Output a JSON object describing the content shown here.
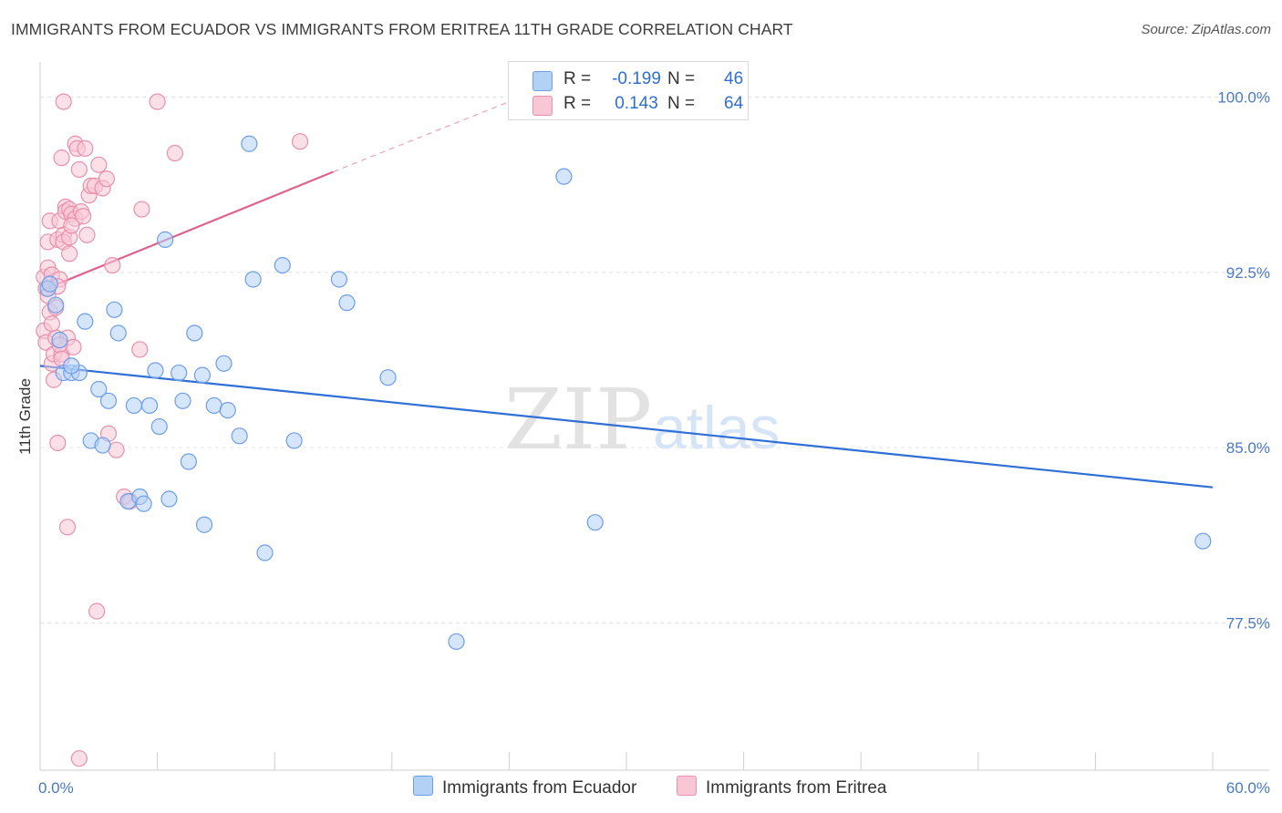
{
  "title": "IMMIGRANTS FROM ECUADOR VS IMMIGRANTS FROM ERITREA 11TH GRADE CORRELATION CHART",
  "source": "Source: ZipAtlas.com",
  "watermark": {
    "zip": "ZIP",
    "atlas": "atlas"
  },
  "legend": {
    "rows": [
      {
        "r_label": "R =",
        "r_value": "-0.199",
        "n_label": "N =",
        "n_value": "46",
        "color": "#b3d0f5",
        "border": "#6d9ee8"
      },
      {
        "r_label": "R =",
        "r_value": "0.143",
        "n_label": "N =",
        "n_value": "64",
        "color": "#f9c6d6",
        "border": "#e890ac"
      }
    ]
  },
  "bottom_legend": {
    "ecuador": "Immigrants from Ecuador",
    "eritrea": "Immigrants from Eritrea"
  },
  "chart_data": {
    "type": "scatter",
    "title": "IMMIGRANTS FROM ECUADOR VS IMMIGRANTS FROM ERITREA 11TH GRADE CORRELATION CHART",
    "xlabel": "",
    "ylabel": "11th Grade",
    "xlim": [
      0,
      60
    ],
    "ylim": [
      71.2,
      101.5
    ],
    "x_tick_labels": [
      "0.0%",
      "60.0%"
    ],
    "y_ticks": [
      100.0,
      92.5,
      85.0,
      77.5
    ],
    "y_tick_labels": [
      "100.0%",
      "92.5%",
      "85.0%",
      "77.5%"
    ],
    "grid": true,
    "legend_placement": "top-center",
    "series": [
      {
        "name": "Immigrants from Ecuador",
        "color": "#6d9ee8",
        "fill": "#b3d0f5",
        "trend": {
          "x": [
            0.0,
            60.0
          ],
          "y": [
            88.5,
            83.3
          ],
          "color": "#2f6fd6"
        },
        "points": [
          [
            0.4,
            91.8
          ],
          [
            0.5,
            92.0
          ],
          [
            0.8,
            91.1
          ],
          [
            1.0,
            89.6
          ],
          [
            1.2,
            88.2
          ],
          [
            1.6,
            88.2
          ],
          [
            2.0,
            88.2
          ],
          [
            2.3,
            90.4
          ],
          [
            2.6,
            85.3
          ],
          [
            3.0,
            87.5
          ],
          [
            3.2,
            85.1
          ],
          [
            3.5,
            87.0
          ],
          [
            3.8,
            90.9
          ],
          [
            4.0,
            89.9
          ],
          [
            4.5,
            82.7
          ],
          [
            4.8,
            86.8
          ],
          [
            5.1,
            82.9
          ],
          [
            5.3,
            82.6
          ],
          [
            5.6,
            86.8
          ],
          [
            5.9,
            88.3
          ],
          [
            6.1,
            85.9
          ],
          [
            6.4,
            93.9
          ],
          [
            6.6,
            82.8
          ],
          [
            7.1,
            88.2
          ],
          [
            7.3,
            87.0
          ],
          [
            7.6,
            84.4
          ],
          [
            7.9,
            89.9
          ],
          [
            8.3,
            88.1
          ],
          [
            8.4,
            81.7
          ],
          [
            8.9,
            86.8
          ],
          [
            9.4,
            88.6
          ],
          [
            9.6,
            86.6
          ],
          [
            10.2,
            85.5
          ],
          [
            10.7,
            98.0
          ],
          [
            10.9,
            92.2
          ],
          [
            11.5,
            80.5
          ],
          [
            12.4,
            92.8
          ],
          [
            13.0,
            85.3
          ],
          [
            15.3,
            92.2
          ],
          [
            15.7,
            91.2
          ],
          [
            17.8,
            88.0
          ],
          [
            21.3,
            76.7
          ],
          [
            26.8,
            96.6
          ],
          [
            28.4,
            81.8
          ],
          [
            59.5,
            81.0
          ],
          [
            1.6,
            88.5
          ]
        ]
      },
      {
        "name": "Immigrants from Eritrea",
        "color": "#e890ac",
        "fill": "#f9c6d6",
        "trend": {
          "x": [
            0.0,
            15.0
          ],
          "y": [
            91.7,
            96.8
          ],
          "color": "#e0628e",
          "extend_to": [
            24.0,
            99.8
          ]
        },
        "points": [
          [
            0.2,
            92.3
          ],
          [
            0.2,
            90.0
          ],
          [
            0.3,
            89.5
          ],
          [
            0.3,
            91.8
          ],
          [
            0.4,
            92.7
          ],
          [
            0.4,
            93.8
          ],
          [
            0.5,
            94.7
          ],
          [
            0.5,
            90.8
          ],
          [
            0.6,
            88.6
          ],
          [
            0.6,
            92.4
          ],
          [
            0.7,
            89.0
          ],
          [
            0.7,
            87.9
          ],
          [
            0.8,
            91.0
          ],
          [
            0.8,
            89.7
          ],
          [
            0.9,
            85.2
          ],
          [
            0.9,
            93.9
          ],
          [
            1.0,
            92.2
          ],
          [
            1.0,
            94.7
          ],
          [
            1.1,
            97.4
          ],
          [
            1.1,
            89.0
          ],
          [
            1.2,
            94.1
          ],
          [
            1.2,
            93.8
          ],
          [
            1.3,
            95.3
          ],
          [
            1.3,
            95.1
          ],
          [
            1.4,
            89.7
          ],
          [
            1.4,
            81.6
          ],
          [
            1.5,
            94.0
          ],
          [
            1.5,
            95.2
          ],
          [
            1.5,
            93.3
          ],
          [
            1.6,
            95.0
          ],
          [
            1.7,
            89.3
          ],
          [
            1.8,
            98.0
          ],
          [
            1.8,
            94.8
          ],
          [
            1.9,
            97.8
          ],
          [
            2.0,
            96.9
          ],
          [
            2.0,
            71.7
          ],
          [
            2.1,
            95.1
          ],
          [
            2.2,
            94.9
          ],
          [
            2.3,
            97.8
          ],
          [
            2.4,
            94.1
          ],
          [
            2.5,
            95.8
          ],
          [
            2.6,
            96.2
          ],
          [
            2.8,
            96.2
          ],
          [
            3.0,
            97.1
          ],
          [
            3.2,
            96.1
          ],
          [
            3.4,
            96.5
          ],
          [
            3.5,
            85.6
          ],
          [
            3.7,
            92.8
          ],
          [
            3.9,
            84.9
          ],
          [
            4.3,
            82.9
          ],
          [
            4.6,
            82.7
          ],
          [
            5.1,
            89.2
          ],
          [
            5.2,
            95.2
          ],
          [
            6.0,
            99.8
          ],
          [
            6.9,
            97.6
          ],
          [
            13.3,
            98.1
          ],
          [
            1.2,
            99.8
          ],
          [
            0.4,
            91.5
          ],
          [
            1.6,
            94.5
          ],
          [
            2.9,
            78.0
          ],
          [
            1.0,
            89.4
          ],
          [
            0.6,
            90.3
          ],
          [
            1.1,
            88.8
          ],
          [
            0.9,
            91.9
          ]
        ]
      }
    ]
  }
}
